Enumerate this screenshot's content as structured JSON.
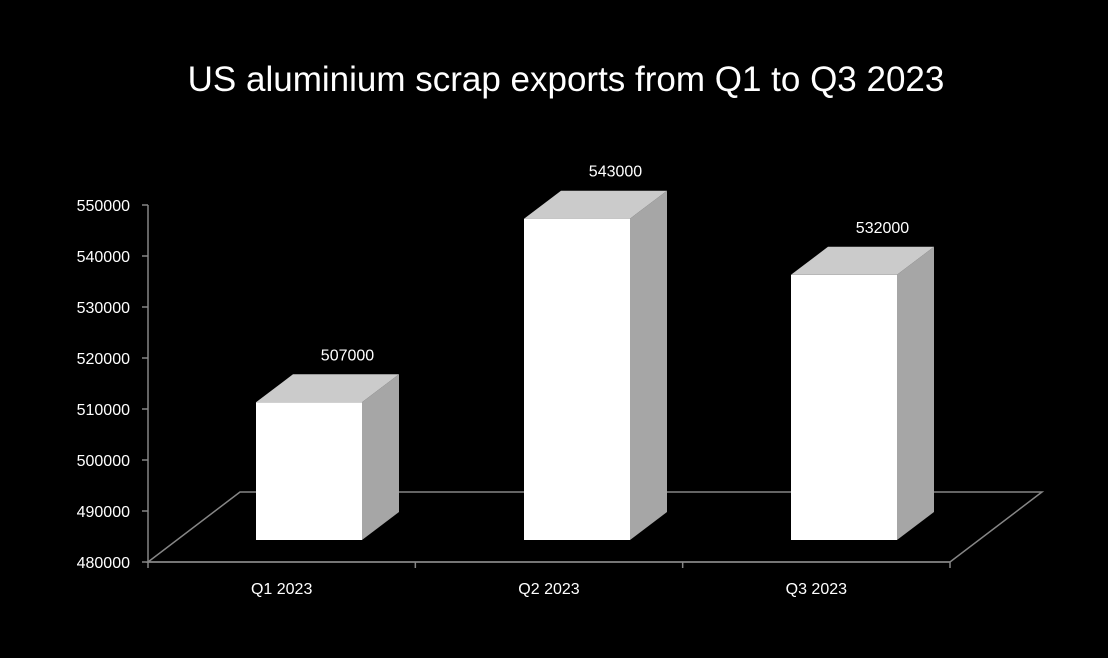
{
  "chart_data": {
    "type": "bar",
    "title": "US aluminium scrap exports from Q1 to Q3 2023",
    "xlabel": "",
    "ylabel": "",
    "categories": [
      "Q1 2023",
      "Q2 2023",
      "Q3 2023"
    ],
    "values": [
      507000,
      543000,
      532000
    ],
    "data_labels": [
      "507000",
      "543000",
      "532000"
    ],
    "ylim": [
      480000,
      550000
    ],
    "yticks": [
      480000,
      490000,
      500000,
      510000,
      520000,
      530000,
      540000,
      550000
    ],
    "ytick_labels": [
      "480000",
      "490000",
      "500000",
      "510000",
      "520000",
      "530000",
      "540000",
      "550000"
    ],
    "grid": false,
    "legend": "none",
    "style": "3d-column",
    "colors": {
      "background": "#000000",
      "bar_front": "#ffffff",
      "bar_top": "#cbcbcb",
      "bar_side": "#a6a6a6",
      "axis": "#868686",
      "text": "#ffffff"
    }
  }
}
